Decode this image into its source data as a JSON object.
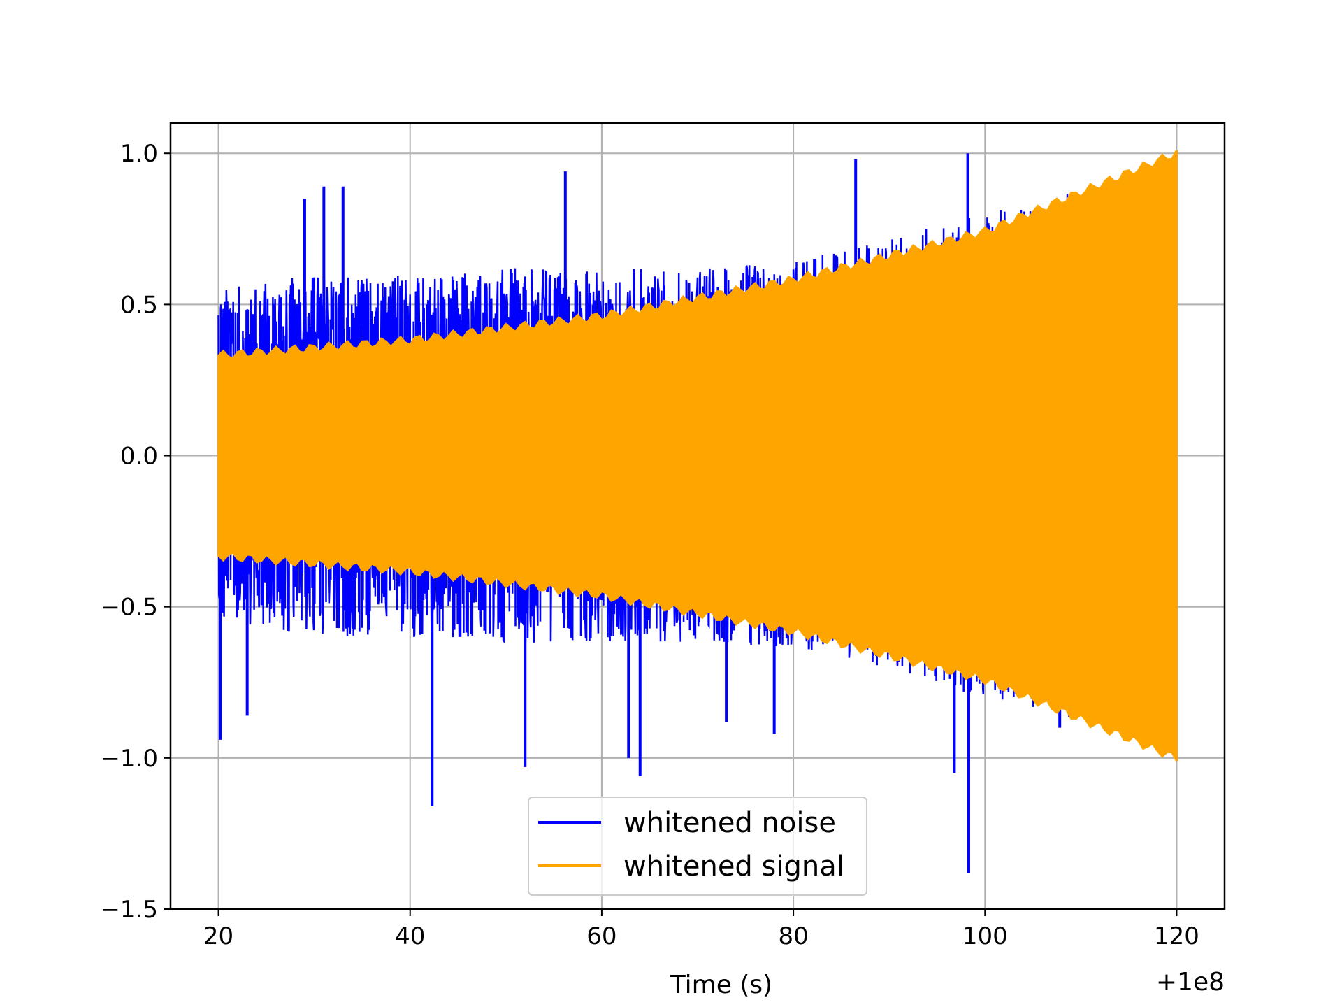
{
  "chart_data": {
    "type": "line",
    "title": "",
    "xlabel": "Time (s)",
    "ylabel": "",
    "x_offset_label": "+1e8",
    "xlim": [
      15,
      125
    ],
    "ylim": [
      -1.5,
      1.1
    ],
    "grid": true,
    "legend_position": "lower-center",
    "x_ticks": [
      20,
      40,
      60,
      80,
      100,
      120
    ],
    "x_tick_labels": [
      "20",
      "40",
      "60",
      "80",
      "100",
      "120"
    ],
    "y_ticks": [
      1.0,
      0.5,
      0.0,
      -0.5,
      -1.0,
      -1.5
    ],
    "y_tick_labels": [
      "1.0",
      "0.5",
      "0.0",
      "−0.5",
      "−1.0",
      "−1.5"
    ],
    "series": [
      {
        "name": "whitened noise",
        "color": "#0000ff",
        "x_range": [
          20,
          120
        ],
        "envelope": {
          "x": [
            20,
            30,
            40,
            50,
            60,
            70,
            80,
            90,
            100,
            110,
            120
          ],
          "upper": [
            0.55,
            0.6,
            0.6,
            0.62,
            0.62,
            0.62,
            0.64,
            0.72,
            0.8,
            0.88,
            0.95
          ],
          "lower": [
            -0.55,
            -0.6,
            -0.6,
            -0.62,
            -0.62,
            -0.62,
            -0.64,
            -0.72,
            -0.8,
            -0.88,
            -0.95
          ]
        },
        "spikes": [
          [
            20.2,
            -0.94
          ],
          [
            23.0,
            -0.86
          ],
          [
            29.0,
            0.85
          ],
          [
            31.0,
            0.89
          ],
          [
            33.0,
            0.89
          ],
          [
            42.3,
            -1.16
          ],
          [
            52.0,
            -1.03
          ],
          [
            56.2,
            0.94
          ],
          [
            62.8,
            -1.0
          ],
          [
            64.0,
            -1.06
          ],
          [
            73.0,
            -0.88
          ],
          [
            78.0,
            -0.92
          ],
          [
            86.5,
            0.98
          ],
          [
            96.8,
            -1.05
          ],
          [
            98.2,
            1.0
          ],
          [
            98.3,
            -1.38
          ],
          [
            107.8,
            -0.9
          ]
        ]
      },
      {
        "name": "whitened signal",
        "color": "#ffa500",
        "x_range": [
          20,
          120
        ],
        "amplitude": {
          "x": [
            20,
            40,
            60,
            80,
            100,
            120
          ],
          "values": [
            0.33,
            0.38,
            0.46,
            0.58,
            0.74,
            1.0
          ]
        }
      }
    ]
  }
}
